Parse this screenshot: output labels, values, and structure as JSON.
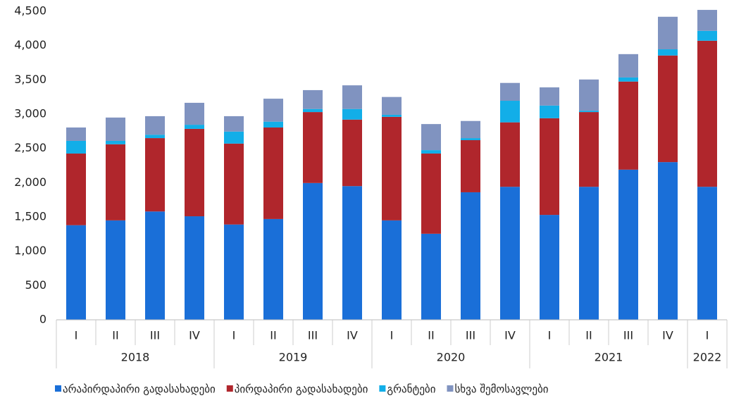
{
  "chart_data": {
    "type": "stacked_bar",
    "category_groups": [
      {
        "label": "2018",
        "categories": [
          "I",
          "II",
          "III",
          "IV"
        ]
      },
      {
        "label": "2019",
        "categories": [
          "I",
          "II",
          "III",
          "IV"
        ]
      },
      {
        "label": "2020",
        "categories": [
          "I",
          "II",
          "III",
          "IV"
        ]
      },
      {
        "label": "2021",
        "categories": [
          "I",
          "II",
          "III",
          "IV"
        ]
      },
      {
        "label": "2022",
        "categories": [
          "I"
        ]
      }
    ],
    "series": [
      {
        "name": "არაპირდაპირი გადასახადები",
        "color": "#1a6fd8",
        "values": [
          1380,
          1450,
          1580,
          1510,
          1390,
          1470,
          1995,
          1950,
          1450,
          1255,
          1860,
          1940,
          1530,
          1940,
          2190,
          2300,
          1940
        ]
      },
      {
        "name": "პირდაპირი გადასახადები",
        "color": "#b0262c",
        "values": [
          1045,
          1110,
          1070,
          1275,
          1180,
          1335,
          1035,
          970,
          1510,
          1170,
          760,
          940,
          1410,
          1090,
          1285,
          1555,
          2130
        ]
      },
      {
        "name": "გრანტები",
        "color": "#12aee8",
        "values": [
          185,
          50,
          50,
          60,
          175,
          85,
          45,
          155,
          30,
          50,
          30,
          315,
          185,
          20,
          60,
          90,
          145
        ]
      },
      {
        "name": "სხვა შემოსავლები",
        "color": "#8093c0",
        "values": [
          195,
          340,
          270,
          320,
          225,
          335,
          275,
          345,
          260,
          380,
          250,
          260,
          265,
          455,
          340,
          475,
          305
        ]
      }
    ],
    "ylim": [
      0,
      4500
    ],
    "yticks": [
      0,
      500,
      {
        "value": 1000,
        "label": "1,000"
      },
      {
        "value": 1500,
        "label": "1,500"
      },
      {
        "value": 2000,
        "label": "2,000"
      },
      {
        "value": 2500,
        "label": "2,500"
      },
      {
        "value": 3000,
        "label": "3,000"
      },
      {
        "value": 3500,
        "label": "3,500"
      },
      {
        "value": 4000,
        "label": "4,000"
      },
      {
        "value": 4500,
        "label": "4,500"
      }
    ],
    "grid": false,
    "legend": "bottom"
  }
}
